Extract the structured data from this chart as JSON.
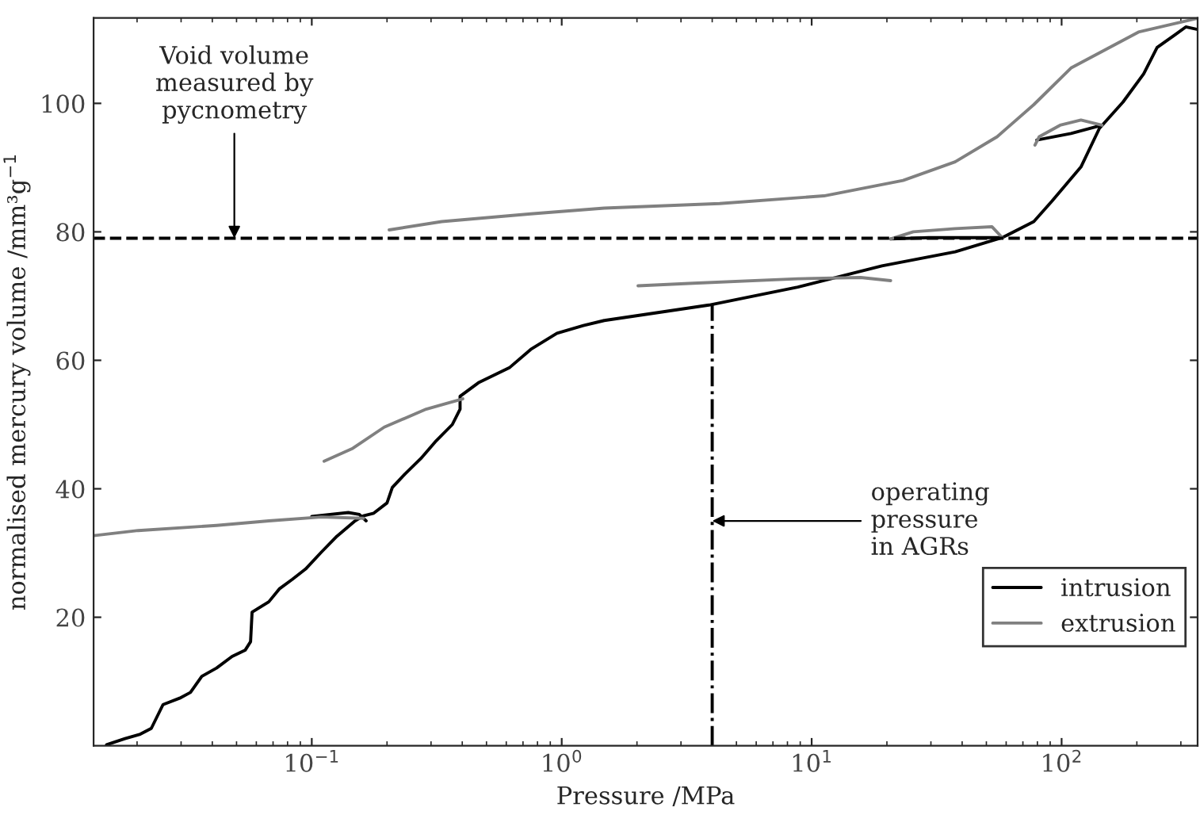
{
  "chart_data": {
    "type": "line",
    "xlabel": "Pressure /MPa",
    "ylabel": "normalised mercury volume /mm³g$^{−1}$",
    "log": "x",
    "xlim": [
      0.0134,
      350
    ],
    "ylim": [
      0,
      113.3
    ],
    "xticks": [
      {
        "value": 0.1,
        "label": "10$^{−1}$"
      },
      {
        "value": 1,
        "label": "10$^{0}$"
      },
      {
        "value": 10,
        "label": "10$^{1}$"
      },
      {
        "value": 100,
        "label": "10$^{2}$"
      }
    ],
    "yticks": [
      20,
      40,
      60,
      80,
      100
    ],
    "grid": false,
    "legend": "bottom right",
    "series": [
      {
        "name": "intrusion",
        "color": "#000000",
        "x": [
          0.0151,
          0.0179,
          0.0206,
          0.0228,
          0.0254,
          0.0296,
          0.0327,
          0.0363,
          0.0416,
          0.048,
          0.0542,
          0.0569,
          0.0577,
          0.0673,
          0.0741,
          0.0836,
          0.0944,
          0.109,
          0.126,
          0.149,
          0.161,
          0.177,
          0.2,
          0.21,
          0.236,
          0.273,
          0.315,
          0.365,
          0.392,
          0.392,
          0.464,
          0.62,
          0.752,
          0.957,
          1.22,
          1.48,
          3.88,
          8.8,
          19.1,
          37.5,
          57.9,
          77.4,
          91.6,
          119.5,
          141.6,
          176,
          213,
          241,
          285,
          314,
          350,
          null,
          0.1,
          0.14,
          0.155,
          0.165,
          null,
          20.7,
          29.4,
          57.9,
          null,
          79.6,
          109,
          145
        ],
        "values": [
          0.15,
          1.1,
          1.8,
          2.7,
          6.4,
          7.4,
          8.3,
          10.8,
          12.1,
          13.9,
          14.9,
          16.2,
          20.8,
          22.4,
          24.4,
          25.9,
          27.5,
          30.1,
          32.6,
          35.0,
          35.8,
          36.2,
          37.8,
          40.2,
          42.3,
          44.7,
          47.5,
          50,
          52.4,
          54.4,
          56.5,
          58.9,
          61.7,
          64.2,
          65.4,
          66.2,
          68.6,
          71.4,
          74.7,
          76.9,
          79.1,
          81.6,
          84.8,
          90.1,
          96.1,
          100.2,
          104.6,
          108.7,
          110.7,
          111.9,
          111.5,
          null,
          35.7,
          36.3,
          36.0,
          35.0,
          null,
          78.9,
          79.1,
          79.1,
          null,
          94.3,
          95.3,
          96.6
        ]
      },
      {
        "name": "extrusion",
        "color": "#808080",
        "x": [
          346,
          203,
          109,
          77.4,
          55.2,
          37.5,
          23.2,
          11.2,
          4.28,
          1.48,
          0.752,
          0.331,
          0.204,
          null,
          145,
          119.5,
          98.6,
          81.3,
          78.2,
          null,
          57.9,
          52.6,
          37.5,
          25.5,
          20.7,
          null,
          20.7,
          15.7,
          8.8,
          3.36,
          2.02,
          null,
          0.402,
          0.287,
          0.195,
          0.146,
          0.112,
          null,
          0.161,
          0.109,
          0.0673,
          0.0416,
          0.0202,
          0.0134
        ],
        "values": [
          113.2,
          111.1,
          105.5,
          99.8,
          94.8,
          90.9,
          88.0,
          85.6,
          84.4,
          83.7,
          82.8,
          81.6,
          80.3,
          null,
          96.6,
          97.4,
          96.6,
          94.8,
          93.5,
          null,
          79.1,
          80.8,
          80.5,
          80.0,
          78.9,
          null,
          72.4,
          72.9,
          72.7,
          72.0,
          71.6,
          null,
          54.0,
          52.4,
          49.6,
          46.3,
          44.3,
          null,
          35.4,
          35.6,
          35.0,
          34.3,
          33.5,
          32.7
        ]
      }
    ],
    "ref_lines": [
      {
        "axis": "y",
        "value": 79,
        "color": "#000000",
        "line_style": "dashed"
      },
      {
        "axis": "x",
        "value": 4,
        "color": "#000000",
        "line_style": "dashdot"
      }
    ],
    "annotations": [
      {
        "text": "Void volume\nmeasured by\npycnometry",
        "x": 0.049,
        "y": 79
      },
      {
        "text": "operating\npressure\nin AGRs",
        "x": 4,
        "y": 35
      }
    ]
  }
}
